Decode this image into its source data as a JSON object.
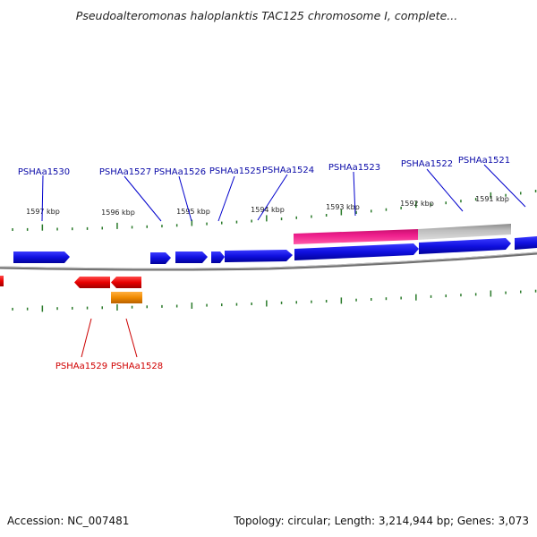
{
  "title": "Pseudoalteromonas haloplanktis TAC125 chromosome I, complete...",
  "footer": {
    "accession": "Accession: NC_007481",
    "topology": "Topology: circular; Length: 3,214,944 bp; Genes: 3,073"
  },
  "colors": {
    "forward_gene": "#1010e0",
    "reverse_gene": "#e80000",
    "reverse_rna": "#f08a00",
    "feature_magenta": "#ee1e8c",
    "feature_gray": "#bdbdbd",
    "backbone": "#707070",
    "tick": "#2a7a2a",
    "forward_label": "#0a0aa8",
    "reverse_label": "#d00000"
  },
  "kbp_labels": [
    "1597 kbp",
    "1596 kbp",
    "1595 kbp",
    "1594 kbp",
    "1593 kbp",
    "1592 kbp",
    "1591 kbp"
  ],
  "genes": {
    "forward": [
      {
        "label": "PSHAa1530"
      },
      {
        "label": "PSHAa1527"
      },
      {
        "label": "PSHAa1526"
      },
      {
        "label": "PSHAa1525"
      },
      {
        "label": "PSHAa1524"
      },
      {
        "label": "PSHAa1523"
      },
      {
        "label": "PSHAa1522"
      },
      {
        "label": "PSHAa1521"
      }
    ],
    "reverse": [
      {
        "label": "PSHAa1529"
      },
      {
        "label": "PSHAa1528"
      }
    ]
  }
}
